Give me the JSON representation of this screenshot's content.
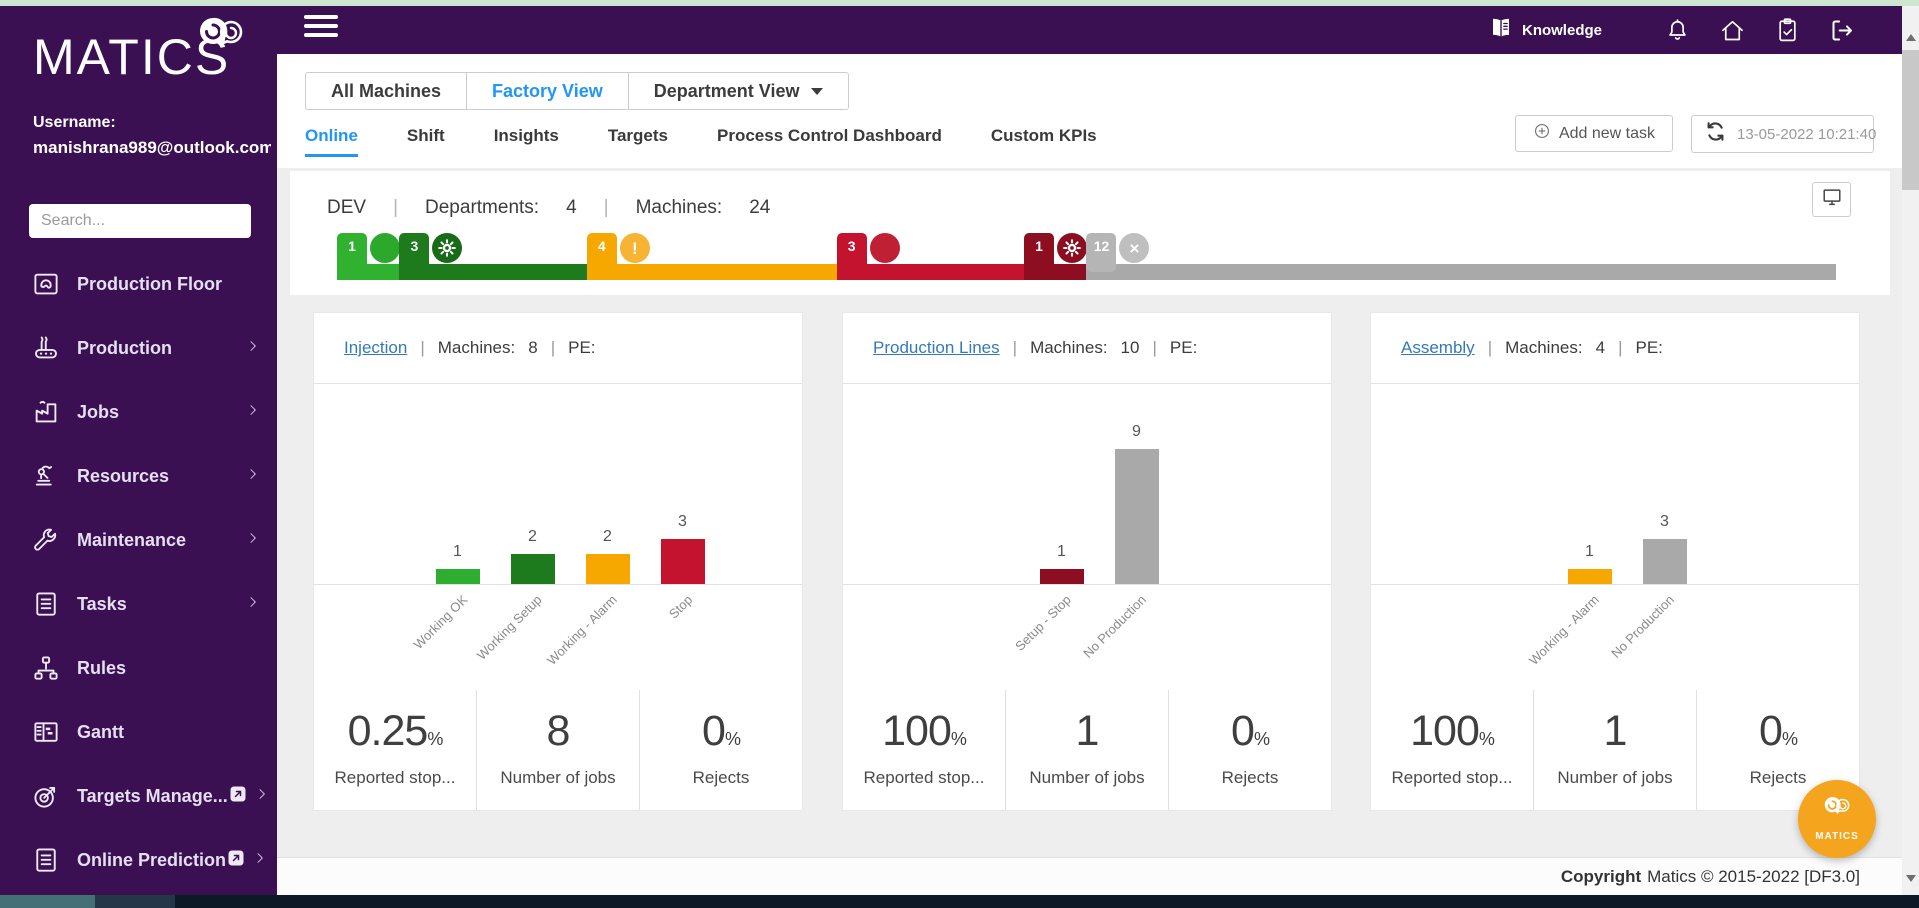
{
  "ui": {
    "pipe": "|"
  },
  "topbar": {
    "knowledge_label": "Knowledge",
    "icons": [
      {
        "name": "bell-icon"
      },
      {
        "name": "home-icon"
      },
      {
        "name": "clipboard-check-icon"
      },
      {
        "name": "logout-icon"
      }
    ]
  },
  "sidebar": {
    "logo_text": "MATICS",
    "username_label": "Username:",
    "username_value": "manishrana989@outlook.com",
    "search_placeholder": "Search...",
    "items": [
      {
        "label": "Production Floor",
        "icon": "production-floor-icon",
        "chevron": false,
        "badge": false
      },
      {
        "label": "Production",
        "icon": "production-icon",
        "chevron": true,
        "badge": false
      },
      {
        "label": "Jobs",
        "icon": "jobs-icon",
        "chevron": true,
        "badge": false
      },
      {
        "label": "Resources",
        "icon": "resources-icon",
        "chevron": true,
        "badge": false
      },
      {
        "label": "Maintenance",
        "icon": "maintenance-icon",
        "chevron": true,
        "badge": false
      },
      {
        "label": "Tasks",
        "icon": "tasks-icon",
        "chevron": true,
        "badge": false
      },
      {
        "label": "Rules",
        "icon": "rules-icon",
        "chevron": false,
        "badge": false
      },
      {
        "label": "Gantt",
        "icon": "gantt-icon",
        "chevron": false,
        "badge": false
      },
      {
        "label": "Targets Manage...",
        "icon": "targets-icon",
        "chevron": true,
        "badge": true
      },
      {
        "label": "Online Prediction",
        "icon": "prediction-icon",
        "chevron": true,
        "badge": true
      }
    ]
  },
  "view_tabs": [
    {
      "label": "All Machines",
      "active": false,
      "caret": false
    },
    {
      "label": "Factory View",
      "active": true,
      "caret": false
    },
    {
      "label": "Department View",
      "active": false,
      "caret": true
    }
  ],
  "sub_tabs": [
    {
      "label": "Online",
      "active": true
    },
    {
      "label": "Shift",
      "active": false
    },
    {
      "label": "Insights",
      "active": false
    },
    {
      "label": "Targets",
      "active": false
    },
    {
      "label": "Process Control Dashboard",
      "active": false
    },
    {
      "label": "Custom KPIs",
      "active": false
    }
  ],
  "controls": {
    "add_task_label": "Add new task",
    "timestamp": "13-05-2022 10:21:40"
  },
  "overview": {
    "site": "DEV",
    "departments_label": "Departments:",
    "departments_value": "4",
    "machines_label": "Machines:",
    "machines_value": "24"
  },
  "status_bar": {
    "total": 24,
    "segments": [
      {
        "count": 1,
        "status": "Working OK",
        "bar_color": "#30b230",
        "chip_color": "#30b230",
        "circle_color": "#2ca82c",
        "icon": "circle"
      },
      {
        "count": 3,
        "status": "Working Setup",
        "bar_color": "#1d7a1d",
        "chip_color": "#1d7a1d",
        "circle_color": "#186b18",
        "icon": "gear"
      },
      {
        "count": 4,
        "status": "Working - Alarm",
        "bar_color": "#f6a800",
        "chip_color": "#f6a800",
        "circle_color": "#f7b434",
        "icon": "exclamation"
      },
      {
        "count": 3,
        "status": "Stop",
        "bar_color": "#c3132e",
        "chip_color": "#c3132e",
        "circle_color": "#c02033",
        "icon": "circle"
      },
      {
        "count": 1,
        "status": "Setup - Stop",
        "bar_color": "#8c0e20",
        "chip_color": "#8c0e20",
        "circle_color": "#8c0e20",
        "icon": "gear"
      },
      {
        "count": 12,
        "status": "No Production",
        "bar_color": "#a9a9a9",
        "chip_color": "#b5b5b5",
        "circle_color": "#bfbfbf",
        "icon": "x"
      }
    ]
  },
  "cards": [
    {
      "title": "Injection",
      "machines_label": "Machines:",
      "machines_value": "8",
      "pe_label": "PE:",
      "chart": {
        "type": "bar",
        "categories": [
          "Working OK",
          "Working Setup",
          "Working - Alarm",
          "Stop"
        ],
        "values": [
          1,
          2,
          2,
          3
        ],
        "colors": [
          "#2eae2e",
          "#1d7a1d",
          "#f6a800",
          "#c3132e"
        ]
      },
      "stats": [
        {
          "value": "0.25",
          "suffix": "%",
          "label": "Reported stop..."
        },
        {
          "value": "8",
          "suffix": "",
          "label": "Number of jobs"
        },
        {
          "value": "0",
          "suffix": "%",
          "label": "Rejects"
        }
      ]
    },
    {
      "title": "Production Lines",
      "machines_label": "Machines:",
      "machines_value": "10",
      "pe_label": "PE:",
      "chart": {
        "type": "bar",
        "categories": [
          "Setup - Stop",
          "No Production"
        ],
        "values": [
          1,
          9
        ],
        "colors": [
          "#8c0e20",
          "#a9a9a9"
        ]
      },
      "stats": [
        {
          "value": "100",
          "suffix": "%",
          "label": "Reported stop..."
        },
        {
          "value": "1",
          "suffix": "",
          "label": "Number of jobs"
        },
        {
          "value": "0",
          "suffix": "%",
          "label": "Rejects"
        }
      ]
    },
    {
      "title": "Assembly",
      "machines_label": "Machines:",
      "machines_value": "4",
      "pe_label": "PE:",
      "chart": {
        "type": "bar",
        "categories": [
          "Working - Alarm",
          "No Production"
        ],
        "values": [
          1,
          3
        ],
        "colors": [
          "#f6a800",
          "#a9a9a9"
        ]
      },
      "stats": [
        {
          "value": "100",
          "suffix": "%",
          "label": "Reported stop..."
        },
        {
          "value": "1",
          "suffix": "",
          "label": "Number of jobs"
        },
        {
          "value": "0",
          "suffix": "%",
          "label": "Rejects"
        }
      ]
    }
  ],
  "footer": {
    "copyright_bold": "Copyright",
    "copyright_text": "Matics © 2015-2022 [DF3.0]"
  },
  "float_button": {
    "label": "MATICS"
  }
}
